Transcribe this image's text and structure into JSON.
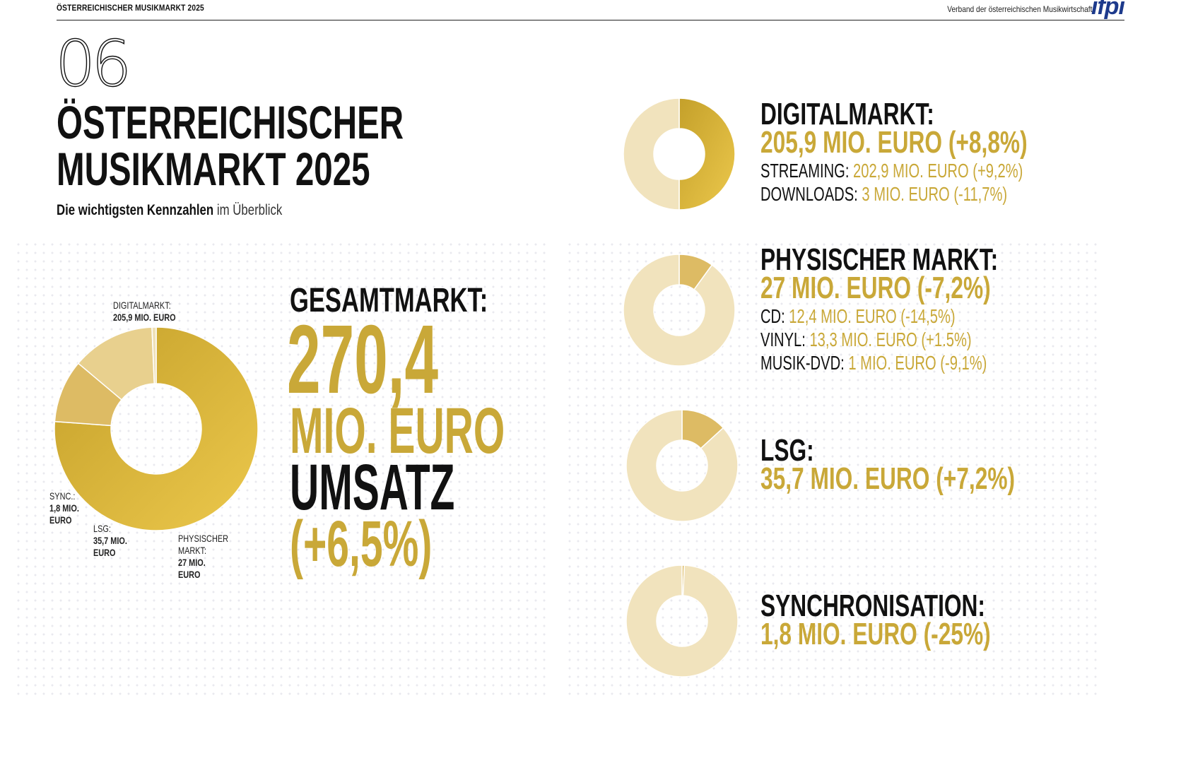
{
  "header": {
    "left": "ÖSTERREICHISCHER MUSIKMARKT 2025",
    "right": "Verband der österreichischen Musikwirtschaft",
    "logo": "ifpi"
  },
  "page": {
    "chapter": "06",
    "title_line1": "ÖSTERREICHISCHER",
    "title_line2": "MUSIKMARKT 2025",
    "subtitle_bold": "Die wichtigsten Kennzahlen",
    "subtitle_rest": "im Überblick"
  },
  "colors": {
    "gold_dark": "#c4a02a",
    "gold_light": "#ecc84c",
    "segment_physisch": "#ddbb64",
    "segment_lsg": "#e8d08e",
    "segment_sync": "#efe0b8",
    "pale": "#f1e3bd"
  },
  "gesamt": {
    "label": "GESAMTMARKT:",
    "number": "270,4",
    "unit": "MIO. EURO",
    "umsatz": "UMSATZ",
    "change": "(+6,5%)"
  },
  "big_labels": {
    "digital_name": "DIGITALMARKT:",
    "digital_value": "205,9 MIO. EURO",
    "sync_name": "SYNC.:",
    "sync_value_1": "1,8 MIO.",
    "sync_value_2": "EURO",
    "lsg_name": "LSG:",
    "lsg_value_1": "35,7 MIO.",
    "lsg_value_2": "EURO",
    "phys_name_1": "PHYSISCHER",
    "phys_name_2": "MARKT:",
    "phys_value_1": "27 MIO.",
    "phys_value_2": "EURO"
  },
  "digital": {
    "title": "DIGITALMARKT:",
    "value": "205,9 MIO. EURO (+8,8%)",
    "streaming_k": "STREAMING:",
    "streaming_v": "202,9 MIO. EURO (+9,2%)",
    "downloads_k": "DOWNLOADS:",
    "downloads_v": "3 MIO. EURO (-11,7%)"
  },
  "physisch": {
    "title": "PHYSISCHER MARKT:",
    "value": "27 MIO. EURO (-7,2%)",
    "cd_k": "CD:",
    "cd_v": "12,4 MIO. EURO (-14,5%)",
    "vinyl_k": "VINYL:",
    "vinyl_v": "13,3 MIO. EURO (+1.5%)",
    "dvd_k": "MUSIK-DVD:",
    "dvd_v": "1 MIO. EURO (-9,1%)"
  },
  "lsg": {
    "title": "LSG:",
    "value": "35,7 MIO. EURO (+7,2%)"
  },
  "sync": {
    "title": "SYNCHRONISATION:",
    "value": "1,8 MIO. EURO (-25%)"
  },
  "chart_data": [
    {
      "type": "pie",
      "variant": "donut",
      "categories": [
        "DIGITALMARKT",
        "PHYSISCHER MARKT",
        "LSG",
        "SYNC."
      ],
      "values": [
        205.9,
        27,
        35.7,
        1.8
      ],
      "unit": "MIO. EURO",
      "order_clockwise_from_top": [
        "DIGITALMARKT",
        "PHYSISCHER MARKT",
        "LSG",
        "SYNC."
      ]
    },
    {
      "type": "pie",
      "variant": "donut",
      "categories": [
        "STREAMING",
        "DOWNLOADS"
      ],
      "values": [
        202.9,
        3
      ],
      "unit": "MIO. EURO"
    },
    {
      "type": "pie",
      "variant": "donut",
      "categories": [
        "PHYSISCHER MARKT",
        "Rest"
      ],
      "values": [
        27,
        243.4
      ],
      "unit": "MIO. EURO"
    },
    {
      "type": "pie",
      "variant": "donut",
      "categories": [
        "LSG",
        "Rest"
      ],
      "values": [
        35.7,
        234.7
      ],
      "unit": "MIO. EURO"
    },
    {
      "type": "pie",
      "variant": "donut",
      "categories": [
        "SYNCHRONISATION",
        "Rest"
      ],
      "values": [
        1.8,
        268.6
      ],
      "unit": "MIO. EURO"
    }
  ]
}
